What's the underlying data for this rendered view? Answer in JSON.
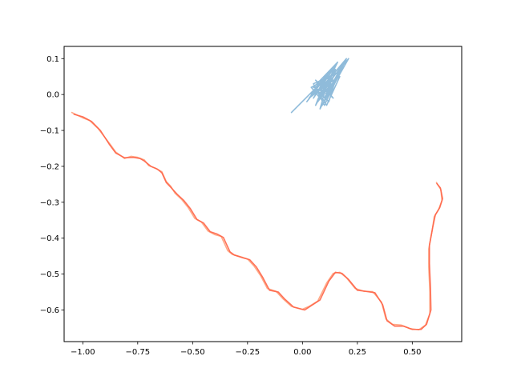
{
  "chart_data": {
    "type": "line",
    "title": "",
    "xlabel": "",
    "ylabel": "",
    "xlim": [
      -1.085,
      0.725
    ],
    "ylim": [
      -0.688,
      0.134
    ],
    "grid": false,
    "x_ticks": [
      {
        "value": -1.0,
        "label": "−1.00"
      },
      {
        "value": -0.75,
        "label": "−0.75"
      },
      {
        "value": -0.5,
        "label": "−0.50"
      },
      {
        "value": -0.25,
        "label": "−0.25"
      },
      {
        "value": 0.0,
        "label": "0.00"
      },
      {
        "value": 0.25,
        "label": "0.25"
      },
      {
        "value": 0.5,
        "label": "0.50"
      }
    ],
    "y_ticks": [
      {
        "value": 0.1,
        "label": "0.1"
      },
      {
        "value": 0.0,
        "label": "0.0"
      },
      {
        "value": -0.1,
        "label": "−0.1"
      },
      {
        "value": -0.2,
        "label": "−0.2"
      },
      {
        "value": -0.3,
        "label": "−0.3"
      },
      {
        "value": -0.4,
        "label": "−0.4"
      },
      {
        "value": -0.5,
        "label": "−0.5"
      },
      {
        "value": -0.6,
        "label": "−0.6"
      }
    ],
    "series": [
      {
        "color": "#7bafd4",
        "opacity": 0.85,
        "points": [
          [
            -0.05,
            -0.05
          ],
          [
            0.08,
            0.03
          ],
          [
            0.02,
            -0.02
          ],
          [
            0.12,
            0.06
          ],
          [
            0.05,
            -0.01
          ],
          [
            0.15,
            0.08
          ],
          [
            0.06,
            0.02
          ],
          [
            0.11,
            -0.03
          ],
          [
            0.17,
            0.05
          ],
          [
            0.04,
            0.0
          ],
          [
            0.13,
            0.07
          ],
          [
            0.08,
            -0.04
          ],
          [
            0.19,
            0.09
          ],
          [
            0.07,
            0.01
          ],
          [
            0.12,
            -0.02
          ],
          [
            0.16,
            0.06
          ],
          [
            0.05,
            0.03
          ],
          [
            0.1,
            -0.03
          ],
          [
            0.2,
            0.1
          ],
          [
            0.09,
            0.02
          ],
          [
            0.14,
            0.04
          ],
          [
            0.03,
            -0.01
          ],
          [
            0.11,
            0.05
          ],
          [
            0.06,
            -0.03
          ],
          [
            0.15,
            0.07
          ],
          [
            0.08,
            0.0
          ],
          [
            0.18,
            0.08
          ],
          [
            0.1,
            -0.01
          ],
          [
            0.13,
            0.03
          ],
          [
            0.07,
            -0.02
          ],
          [
            0.16,
            0.09
          ],
          [
            0.05,
            0.02
          ],
          [
            0.12,
            0.0
          ],
          [
            0.17,
            0.07
          ],
          [
            0.09,
            -0.03
          ],
          [
            0.21,
            0.1
          ],
          [
            0.1,
            0.02
          ],
          [
            0.14,
            -0.01
          ],
          [
            0.06,
            0.04
          ],
          [
            0.11,
            0.01
          ],
          [
            0.15,
            0.06
          ],
          [
            0.08,
            -0.01
          ],
          [
            0.04,
            0.02
          ],
          [
            0.13,
            0.05
          ],
          [
            0.1,
            -0.02
          ]
        ]
      },
      {
        "color": "#ffa07a",
        "opacity": 0.9,
        "points": [
          [
            -1.05,
            -0.05
          ],
          [
            -1.0,
            -0.065
          ],
          [
            -0.97,
            -0.072
          ],
          [
            -0.93,
            -0.095
          ],
          [
            -0.88,
            -0.135
          ],
          [
            -0.85,
            -0.16
          ],
          [
            -0.81,
            -0.178
          ],
          [
            -0.78,
            -0.172
          ],
          [
            -0.75,
            -0.175
          ],
          [
            -0.72,
            -0.182
          ],
          [
            -0.7,
            -0.198
          ],
          [
            -0.67,
            -0.205
          ],
          [
            -0.64,
            -0.215
          ],
          [
            -0.62,
            -0.242
          ],
          [
            -0.6,
            -0.255
          ],
          [
            -0.58,
            -0.275
          ],
          [
            -0.55,
            -0.292
          ],
          [
            -0.52,
            -0.315
          ],
          [
            -0.49,
            -0.345
          ],
          [
            -0.46,
            -0.355
          ],
          [
            -0.43,
            -0.38
          ],
          [
            -0.4,
            -0.39
          ],
          [
            -0.37,
            -0.395
          ],
          [
            -0.34,
            -0.435
          ],
          [
            -0.32,
            -0.445
          ],
          [
            -0.28,
            -0.452
          ],
          [
            -0.25,
            -0.458
          ],
          [
            -0.22,
            -0.478
          ],
          [
            -0.19,
            -0.505
          ],
          [
            -0.16,
            -0.54
          ],
          [
            -0.12,
            -0.548
          ],
          [
            -0.09,
            -0.568
          ],
          [
            -0.05,
            -0.59
          ],
          [
            0.0,
            -0.598
          ],
          [
            0.03,
            -0.59
          ],
          [
            0.07,
            -0.575
          ],
          [
            0.11,
            -0.525
          ],
          [
            0.14,
            -0.498
          ],
          [
            0.17,
            -0.495
          ],
          [
            0.2,
            -0.51
          ],
          [
            0.24,
            -0.54
          ],
          [
            0.28,
            -0.548
          ],
          [
            0.32,
            -0.549
          ],
          [
            0.36,
            -0.578
          ],
          [
            0.38,
            -0.625
          ],
          [
            0.41,
            -0.64
          ],
          [
            0.45,
            -0.642
          ],
          [
            0.49,
            -0.652
          ],
          [
            0.53,
            -0.655
          ],
          [
            0.56,
            -0.642
          ],
          [
            0.58,
            -0.61
          ],
          [
            0.58,
            -0.55
          ],
          [
            0.575,
            -0.48
          ],
          [
            0.575,
            -0.43
          ],
          [
            0.59,
            -0.38
          ],
          [
            0.6,
            -0.34
          ],
          [
            0.62,
            -0.32
          ],
          [
            0.635,
            -0.295
          ],
          [
            0.63,
            -0.265
          ],
          [
            0.61,
            -0.245
          ]
        ]
      },
      {
        "color": "#ff6347",
        "opacity": 0.9,
        "points": [
          [
            -1.04,
            -0.055
          ],
          [
            -1.0,
            -0.062
          ],
          [
            -0.96,
            -0.075
          ],
          [
            -0.92,
            -0.1
          ],
          [
            -0.88,
            -0.138
          ],
          [
            -0.85,
            -0.163
          ],
          [
            -0.81,
            -0.176
          ],
          [
            -0.77,
            -0.175
          ],
          [
            -0.74,
            -0.178
          ],
          [
            -0.72,
            -0.185
          ],
          [
            -0.69,
            -0.2
          ],
          [
            -0.66,
            -0.208
          ],
          [
            -0.64,
            -0.218
          ],
          [
            -0.62,
            -0.245
          ],
          [
            -0.6,
            -0.258
          ],
          [
            -0.57,
            -0.278
          ],
          [
            -0.54,
            -0.295
          ],
          [
            -0.51,
            -0.318
          ],
          [
            -0.48,
            -0.348
          ],
          [
            -0.45,
            -0.358
          ],
          [
            -0.42,
            -0.382
          ],
          [
            -0.39,
            -0.388
          ],
          [
            -0.36,
            -0.398
          ],
          [
            -0.33,
            -0.438
          ],
          [
            -0.31,
            -0.447
          ],
          [
            -0.27,
            -0.455
          ],
          [
            -0.24,
            -0.46
          ],
          [
            -0.21,
            -0.48
          ],
          [
            -0.18,
            -0.51
          ],
          [
            -0.15,
            -0.545
          ],
          [
            -0.11,
            -0.55
          ],
          [
            -0.08,
            -0.57
          ],
          [
            -0.04,
            -0.592
          ],
          [
            0.01,
            -0.6
          ],
          [
            0.04,
            -0.588
          ],
          [
            0.08,
            -0.572
          ],
          [
            0.12,
            -0.52
          ],
          [
            0.15,
            -0.495
          ],
          [
            0.18,
            -0.498
          ],
          [
            0.21,
            -0.515
          ],
          [
            0.25,
            -0.545
          ],
          [
            0.29,
            -0.548
          ],
          [
            0.33,
            -0.552
          ],
          [
            0.365,
            -0.585
          ],
          [
            0.385,
            -0.63
          ],
          [
            0.42,
            -0.645
          ],
          [
            0.46,
            -0.645
          ],
          [
            0.5,
            -0.654
          ],
          [
            0.54,
            -0.654
          ],
          [
            0.565,
            -0.64
          ],
          [
            0.585,
            -0.6
          ],
          [
            0.583,
            -0.54
          ],
          [
            0.578,
            -0.47
          ],
          [
            0.578,
            -0.42
          ],
          [
            0.593,
            -0.37
          ],
          [
            0.605,
            -0.335
          ],
          [
            0.625,
            -0.315
          ],
          [
            0.638,
            -0.29
          ],
          [
            0.628,
            -0.26
          ],
          [
            0.612,
            -0.248
          ]
        ]
      }
    ]
  }
}
